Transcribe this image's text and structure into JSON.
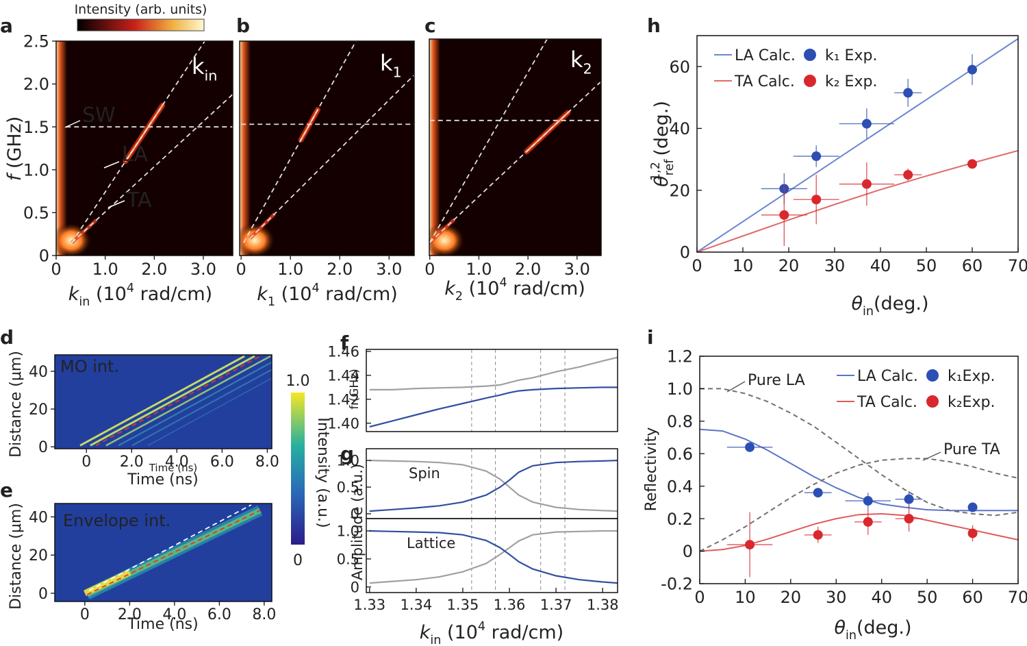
{
  "chart_data": [
    {
      "type": "heatmap",
      "panel": "a",
      "colorbar_label": "Intensity (arb. units)",
      "corner_label": [
        "k",
        "in"
      ],
      "corner_label_style": [
        "normal",
        "sub"
      ],
      "xlabel": [
        "k",
        "in",
        " (10",
        "4",
        " rad/cm)"
      ],
      "xlabel_style": [
        "italic",
        "sub",
        "normal",
        "sup",
        "normal"
      ],
      "ylabel": [
        "f",
        " (GHz)"
      ],
      "ylabel_style": [
        "italic",
        "normal"
      ],
      "xlim": [
        0,
        3.6
      ],
      "ylim": [
        0,
        2.5
      ],
      "xticks": [
        0,
        {
          "value": 1,
          "label": "1.0"
        },
        {
          "value": 2,
          "label": "2.0"
        },
        {
          "value": 3,
          "label": "3.0"
        }
      ],
      "yticks": [
        0,
        0.5,
        {
          "value": 1,
          "label": "1.0"
        },
        1.5,
        {
          "value": 2,
          "label": "2.0"
        },
        2.5
      ],
      "lines": [
        {
          "color": "#e0e0e0",
          "dash": true,
          "x": [
            0.2,
            3.6
          ],
          "y": [
            1.5,
            1.5
          ]
        },
        {
          "color": "#e0e0e0",
          "dash": true,
          "x": [
            0.32,
            3.03
          ],
          "y": [
            0.15,
            2.5
          ]
        },
        {
          "color": "#e0e0e0",
          "dash": true,
          "x": [
            0.32,
            3.6
          ],
          "y": [
            0.15,
            1.88
          ]
        }
      ],
      "annotations": [
        "SW",
        "LA",
        "TA"
      ]
    },
    {
      "type": "heatmap",
      "panel": "b",
      "corner_label": [
        "k",
        "1"
      ],
      "corner_label_style": [
        "normal",
        "sub"
      ],
      "xlabel": [
        "k",
        "1",
        " (10",
        "4",
        " rad/cm)"
      ],
      "xlabel_style": [
        "italic",
        "sub",
        "normal",
        "sup",
        "normal"
      ],
      "xlim": [
        -0.03,
        3.51
      ],
      "ylim": [
        0,
        2.5
      ],
      "xticks": [
        0,
        {
          "value": 1,
          "label": "1.0"
        },
        {
          "value": 2,
          "label": "2.0"
        },
        {
          "value": 3,
          "label": "3.0"
        }
      ],
      "lines": [
        {
          "color": "#e0e0e0",
          "dash": true,
          "x": [
            0,
            3.51
          ],
          "y": [
            1.53,
            1.53
          ]
        },
        {
          "color": "#e0e0e0",
          "dash": true,
          "x": [
            0.05,
            2.33
          ],
          "y": [
            0.15,
            2.5
          ]
        },
        {
          "color": "#e0e0e0",
          "dash": true,
          "x": [
            0.18,
            3.5
          ],
          "y": [
            0.2,
            2.1
          ]
        }
      ]
    },
    {
      "type": "heatmap",
      "panel": "c",
      "corner_label": [
        "k",
        "2"
      ],
      "corner_label_style": [
        "normal",
        "sub"
      ],
      "xlabel": [
        "k",
        "2",
        " (10",
        "4",
        " rad/cm)"
      ],
      "xlabel_style": [
        "italic",
        "sub",
        "normal",
        "sup",
        "normal"
      ],
      "xlim": [
        -0.01,
        3.49
      ],
      "ylim": [
        0,
        2.5
      ],
      "xticks": [
        0,
        {
          "value": 1,
          "label": "1.0"
        },
        {
          "value": 2,
          "label": "2.0"
        },
        {
          "value": 3,
          "label": "3.0"
        }
      ],
      "lines": [
        {
          "color": "#e0e0e0",
          "dash": true,
          "x": [
            0,
            3.49
          ],
          "y": [
            1.56,
            1.56
          ]
        },
        {
          "color": "#e0e0e0",
          "dash": true,
          "x": [
            0,
            2.39
          ],
          "y": [
            0.15,
            2.5
          ]
        },
        {
          "color": "#e0e0e0",
          "dash": true,
          "x": [
            0,
            3.47
          ],
          "y": [
            0.15,
            2.0
          ]
        }
      ]
    },
    {
      "type": "heatmap",
      "panel": "d",
      "label": "MO int.",
      "xlabel": [
        "Time (ns)"
      ],
      "xlabel_overlay": "Time (ns)",
      "ylabel": [
        "Distance (μm)"
      ],
      "xlim": [
        -1.4,
        8.2
      ],
      "ylim": [
        -1,
        48.7
      ],
      "xticks": [
        0,
        {
          "value": 2,
          "label": "2.0"
        },
        {
          "value": 4,
          "label": "4.0"
        },
        {
          "value": 6,
          "label": "6.0"
        },
        {
          "value": 8,
          "label": "8.0"
        }
      ],
      "yticks": [
        0,
        20,
        40
      ],
      "lines": [
        {
          "color": "#e8322a",
          "dash": true,
          "x": [
            0.42,
            7.69
          ],
          "y": [
            0.7,
            48
          ]
        }
      ],
      "colorbar_label": "Intensity (a.u.)",
      "colorbar_lim": [
        0,
        1
      ],
      "colorbar_ticks": [
        {
          "value": 1,
          "label": "1.0"
        },
        0
      ]
    },
    {
      "type": "heatmap",
      "panel": "e",
      "label": "Envelope int.",
      "xlabel": [
        "Time (ns)"
      ],
      "ylabel": [
        "Distance (μm)"
      ],
      "xlim": [
        -1.34,
        8.34
      ],
      "ylim": [
        -4.3,
        47
      ],
      "xticks": [
        0,
        {
          "value": 2,
          "label": "2.0"
        },
        {
          "value": 4,
          "label": "4.0"
        },
        {
          "value": 6,
          "label": "6.0"
        },
        {
          "value": 8,
          "label": "8.0"
        }
      ],
      "yticks": [
        0,
        20,
        40
      ],
      "lines": [
        {
          "color": "#ffffff",
          "dash": true,
          "x": [
            0.19,
            7.42
          ],
          "y": [
            1.4,
            46.3
          ]
        },
        {
          "color": "#e8322a",
          "dash": true,
          "x": [
            0.1,
            7.82
          ],
          "y": [
            -0.7,
            43.4
          ]
        }
      ]
    },
    {
      "type": "line",
      "panel": "f",
      "ylabel": [
        "f (GHz)"
      ],
      "xlim": [
        1.3293,
        1.3832
      ],
      "ylim": [
        1.393,
        1.4617
      ],
      "yticks": [
        {
          "value": 1.4,
          "label": "1.40"
        },
        1.42,
        1.44,
        1.46
      ],
      "vlines": [
        1.3519,
        1.357,
        1.3667,
        1.3719
      ],
      "x": [
        1.33,
        1.335,
        1.34,
        1.345,
        1.35,
        1.355,
        1.358,
        1.36,
        1.362,
        1.365,
        1.37,
        1.375,
        1.38,
        1.3832
      ],
      "series": [
        {
          "color": "#a0a0a0",
          "values": [
            1.428,
            1.428,
            1.429,
            1.4295,
            1.43,
            1.431,
            1.432,
            1.434,
            1.436,
            1.438,
            1.443,
            1.447,
            1.452,
            1.455
          ]
        },
        {
          "color": "#2f4fa0",
          "values": [
            1.397,
            1.402,
            1.407,
            1.412,
            1.4165,
            1.421,
            1.4235,
            1.4255,
            1.427,
            1.428,
            1.429,
            1.4295,
            1.43,
            1.43
          ]
        }
      ]
    },
    {
      "type": "line",
      "panel": "g",
      "ylabel": [
        "Amplitude (a.u.)"
      ],
      "annotation": "Spin",
      "xlim": [
        1.3293,
        1.3832
      ],
      "ylim": [
        -0.09,
        1.22
      ],
      "yticks": [
        0,
        0.5,
        {
          "value": 1,
          "label": "1.0"
        }
      ],
      "vlines": [
        1.3519,
        1.357,
        1.3667,
        1.3719
      ],
      "x": [
        1.33,
        1.335,
        1.34,
        1.345,
        1.35,
        1.355,
        1.358,
        1.36,
        1.362,
        1.365,
        1.37,
        1.375,
        1.38,
        1.3832
      ],
      "series": [
        {
          "color": "#a0a0a0",
          "values": [
            1.0,
            0.99,
            0.98,
            0.96,
            0.92,
            0.8,
            0.65,
            0.5,
            0.35,
            0.22,
            0.12,
            0.08,
            0.06,
            0.05
          ]
        },
        {
          "color": "#2f4fa0",
          "values": [
            0.05,
            0.08,
            0.11,
            0.15,
            0.22,
            0.35,
            0.5,
            0.63,
            0.78,
            0.9,
            0.96,
            0.98,
            0.99,
            1.0
          ]
        }
      ]
    },
    {
      "type": "line",
      "annotation": "Lattice",
      "xlabel": [
        "k",
        "in",
        "  (10",
        "4",
        " rad/cm)"
      ],
      "xlabel_style": [
        "italic",
        "sub",
        "normal",
        "sup",
        "normal"
      ],
      "xlim": [
        1.3293,
        1.3832
      ],
      "ylim": [
        -0.1,
        1.22
      ],
      "xticks": [
        1.33,
        1.34,
        1.35,
        1.36,
        1.37,
        1.38
      ],
      "yticks": [
        0,
        0.5,
        {
          "value": 1,
          "label": "1.0"
        }
      ],
      "vlines": [
        1.3519,
        1.357,
        1.3667,
        1.3719
      ],
      "x": [
        1.33,
        1.335,
        1.34,
        1.345,
        1.35,
        1.355,
        1.358,
        1.36,
        1.362,
        1.365,
        1.37,
        1.375,
        1.38,
        1.3832
      ],
      "series": [
        {
          "color": "#a0a0a0",
          "values": [
            0.07,
            0.1,
            0.13,
            0.18,
            0.27,
            0.42,
            0.58,
            0.7,
            0.82,
            0.93,
            0.98,
            0.99,
            1.0,
            1.0
          ]
        },
        {
          "color": "#2f4fa0",
          "values": [
            1.0,
            0.99,
            0.98,
            0.97,
            0.93,
            0.83,
            0.7,
            0.58,
            0.45,
            0.32,
            0.2,
            0.13,
            0.09,
            0.07
          ]
        }
      ]
    },
    {
      "type": "scatter",
      "panel": "h",
      "legend": "upper left",
      "xlabel": [
        "θ",
        "in",
        "(deg.)"
      ],
      "xlabel_style": [
        "italic",
        "sub",
        "normal"
      ],
      "ylabel": [
        "θ",
        "ref",
        "1,2",
        " (deg.)"
      ],
      "ylabel_style": [
        "italic",
        "sub",
        "sup",
        "normal"
      ],
      "xlim": [
        0,
        70
      ],
      "ylim": [
        0,
        70
      ],
      "xticks": [
        0,
        10,
        20,
        30,
        40,
        50,
        60,
        70
      ],
      "yticks": [
        0,
        20,
        40,
        60
      ],
      "lines": [
        {
          "name": "LA Calc.",
          "color": "#6c86d0",
          "x": [
            0,
            70
          ],
          "y": [
            0,
            69
          ]
        },
        {
          "name": "TA Calc.",
          "color": "#e06a6a",
          "x": [
            0,
            10,
            20,
            30,
            40,
            50,
            60,
            70
          ],
          "y": [
            0,
            5.2,
            10.4,
            15.4,
            20.2,
            24.6,
            28.8,
            32.8
          ]
        }
      ],
      "series": [
        {
          "name": "k₁ Exp.",
          "color": "#2d4fb4",
          "x": [
            19,
            26,
            37,
            46,
            60
          ],
          "values": [
            20.5,
            31,
            41.5,
            51.5,
            59
          ],
          "xerr": [
            5,
            5,
            6,
            3,
            1
          ],
          "yerr": [
            5,
            3.5,
            5,
            4.5,
            5
          ]
        },
        {
          "name": "k₂ Exp.",
          "color": "#d8282e",
          "x": [
            19,
            26,
            37,
            46,
            60
          ],
          "values": [
            12,
            17,
            22,
            25,
            28.5
          ],
          "xerr": [
            5,
            5,
            6,
            3,
            1
          ],
          "yerr": [
            10,
            8,
            7,
            2,
            1
          ]
        }
      ]
    },
    {
      "type": "scatter",
      "panel": "i",
      "legend": "upper right",
      "xlabel": [
        "θ",
        "in",
        "(deg.)"
      ],
      "xlabel_style": [
        "italic",
        "sub",
        "normal"
      ],
      "ylabel": [
        "Reflectivity"
      ],
      "xlim": [
        0,
        70
      ],
      "ylim": [
        -0.2,
        1.2
      ],
      "xticks": [
        0,
        10,
        20,
        30,
        40,
        50,
        60,
        70
      ],
      "yticks": [
        -0.2,
        0,
        0.2,
        0.4,
        0.6,
        0.8,
        {
          "value": 1,
          "label": "1.0"
        },
        1.2
      ],
      "lines": [
        {
          "name": "LA Calc.",
          "color": "#5b74c8",
          "x": [
            0,
            5,
            10,
            15,
            20,
            25,
            30,
            35,
            40,
            45,
            50,
            55,
            60,
            65,
            70
          ],
          "y": [
            0.75,
            0.74,
            0.69,
            0.62,
            0.54,
            0.46,
            0.39,
            0.33,
            0.29,
            0.27,
            0.255,
            0.25,
            0.25,
            0.25,
            0.25
          ]
        },
        {
          "name": "TA Calc.",
          "color": "#e05a5a",
          "x": [
            0,
            5,
            10,
            15,
            20,
            25,
            30,
            35,
            40,
            45,
            50,
            55,
            60,
            65,
            70
          ],
          "y": [
            0,
            0.01,
            0.035,
            0.075,
            0.12,
            0.165,
            0.2,
            0.225,
            0.23,
            0.22,
            0.19,
            0.16,
            0.13,
            0.1,
            0.07
          ]
        },
        {
          "name": "Pure LA",
          "color": "#707070",
          "dash": true,
          "x": [
            0,
            5,
            10,
            15,
            20,
            25,
            30,
            35,
            40,
            45,
            50,
            55,
            60,
            65,
            70
          ],
          "y": [
            1.0,
            1.0,
            0.97,
            0.92,
            0.85,
            0.77,
            0.67,
            0.57,
            0.47,
            0.38,
            0.3,
            0.25,
            0.23,
            0.22,
            0.24
          ]
        },
        {
          "name": "Pure TA",
          "color": "#707070",
          "dash": true,
          "x": [
            0,
            5,
            10,
            15,
            20,
            25,
            30,
            35,
            40,
            45,
            50,
            55,
            60,
            65,
            70
          ],
          "y": [
            0,
            0.07,
            0.15,
            0.24,
            0.33,
            0.41,
            0.48,
            0.53,
            0.56,
            0.57,
            0.57,
            0.55,
            0.52,
            0.48,
            0.45
          ]
        }
      ],
      "series": [
        {
          "name": "k₁Exp.",
          "color": "#2d4fb4",
          "x": [
            11,
            26,
            37,
            46,
            60
          ],
          "values": [
            0.64,
            0.36,
            0.31,
            0.32,
            0.27
          ],
          "xerr": [
            5,
            3,
            5,
            3,
            1
          ],
          "yerr": [
            0.02,
            0.02,
            0.05,
            0.05,
            0.02
          ]
        },
        {
          "name": "k₂Exp.",
          "color": "#d8282e",
          "x": [
            11,
            26,
            37,
            46,
            60
          ],
          "values": [
            0.04,
            0.1,
            0.18,
            0.2,
            0.11
          ],
          "xerr": [
            5,
            3,
            3,
            3,
            1
          ],
          "yerr": [
            0.2,
            0.05,
            0.08,
            0.08,
            0.05
          ]
        }
      ]
    }
  ]
}
